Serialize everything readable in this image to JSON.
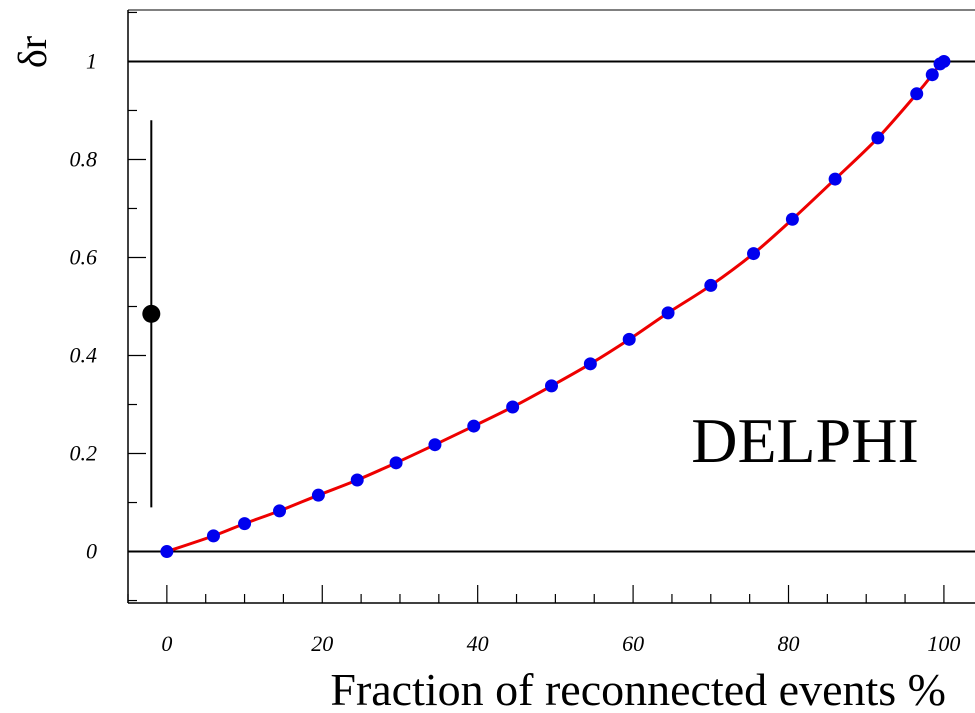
{
  "chart_data": {
    "type": "scatter",
    "title": "",
    "annotation": "DELPHI",
    "xlabel": "Fraction of reconnected events %",
    "ylabel": "δr",
    "xlim": [
      -5,
      104
    ],
    "ylim": [
      -0.105,
      1.105
    ],
    "x_ticks": [
      "0",
      "20",
      "40",
      "60",
      "80",
      "100"
    ],
    "y_ticks": [
      "0",
      "0.2",
      "0.4",
      "0.6",
      "0.8",
      "1"
    ],
    "reference_lines": [
      0,
      1
    ],
    "grid": false,
    "legend": "none",
    "colors": {
      "points": "#0000ee",
      "curve": "#ee0000",
      "measurement": "#000000",
      "lines": "#000000"
    },
    "series": [
      {
        "kind": "points",
        "x": [
          0,
          6,
          10,
          14.5,
          19.5,
          24.5,
          29.5,
          34.5,
          39.5,
          44.5,
          49.5,
          54.5,
          59.5,
          64.5,
          70,
          75.5,
          80.5,
          86,
          91.5,
          96.5,
          98.5,
          99.5,
          100
        ],
        "y": [
          0,
          0.032,
          0.057,
          0.083,
          0.115,
          0.146,
          0.181,
          0.218,
          0.256,
          0.295,
          0.338,
          0.383,
          0.433,
          0.487,
          0.543,
          0.608,
          0.678,
          0.76,
          0.844,
          0.934,
          0.973,
          0.995,
          1.0
        ]
      },
      {
        "kind": "fit-curve",
        "x": [
          0,
          6,
          10,
          14.5,
          19.5,
          24.5,
          29.5,
          34.5,
          39.5,
          44.5,
          49.5,
          54.5,
          59.5,
          64.5,
          70,
          75.5,
          80.5,
          86,
          91.5,
          96.5,
          98.5,
          99.5,
          100
        ],
        "y": [
          0,
          0.032,
          0.057,
          0.083,
          0.115,
          0.146,
          0.181,
          0.218,
          0.256,
          0.295,
          0.338,
          0.383,
          0.433,
          0.487,
          0.543,
          0.608,
          0.678,
          0.76,
          0.844,
          0.934,
          0.973,
          0.995,
          1.0
        ]
      },
      {
        "kind": "measurement",
        "x": -2,
        "y": 0.485,
        "y_low": 0.09,
        "y_high": 0.88
      }
    ]
  }
}
